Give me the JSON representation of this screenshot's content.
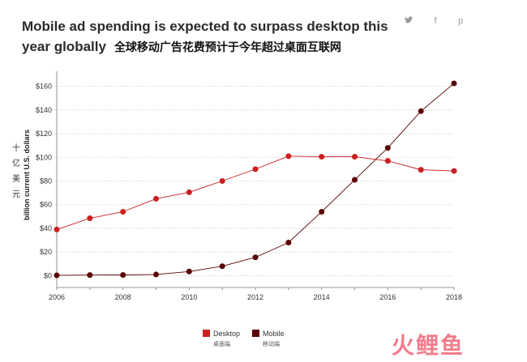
{
  "header": {
    "title": "Mobile ad spending is expected to surpass desktop this year globally",
    "title_cn": "全球移动广告花费预计于今年超过桌面互联网"
  },
  "social": [
    {
      "name": "twitter-icon",
      "glyph": "🐦"
    },
    {
      "name": "facebook-icon",
      "glyph": "f"
    },
    {
      "name": "pinterest-icon",
      "glyph": "p"
    }
  ],
  "legend": [
    {
      "label": "Desktop",
      "label_cn": "桌面端",
      "color": "#cc1f1f"
    },
    {
      "label": "Mobile",
      "label_cn": "移动端",
      "color": "#5a0000"
    }
  ],
  "watermark": "火鲤鱼",
  "chart_data": {
    "type": "line",
    "ylabel": "billion current U.S. dollars",
    "ylabel_cn": "十亿美元",
    "x": [
      2006,
      2007,
      2008,
      2009,
      2010,
      2011,
      2012,
      2013,
      2014,
      2015,
      2016,
      2017,
      2018
    ],
    "xticks": [
      2006,
      2008,
      2010,
      2012,
      2014,
      2016,
      2018
    ],
    "yticks": [
      0,
      20,
      40,
      60,
      80,
      100,
      120,
      140,
      160
    ],
    "ytick_prefix": "$",
    "xlim": [
      2006,
      2018
    ],
    "ylim": [
      -10,
      170
    ],
    "grid": "horizontal-dashed",
    "legend_position": "bottom-center",
    "series": [
      {
        "name": "Desktop",
        "color": "#cc1f1f",
        "values": [
          39,
          48.5,
          54,
          65,
          70.5,
          80,
          90,
          101,
          100.5,
          100.5,
          97,
          89.5,
          88.5
        ]
      },
      {
        "name": "Mobile",
        "color": "#5a0000",
        "values": [
          0.3,
          0.5,
          0.6,
          1,
          3.5,
          8,
          15.5,
          28,
          54,
          81,
          108,
          139,
          162.5
        ]
      }
    ]
  }
}
